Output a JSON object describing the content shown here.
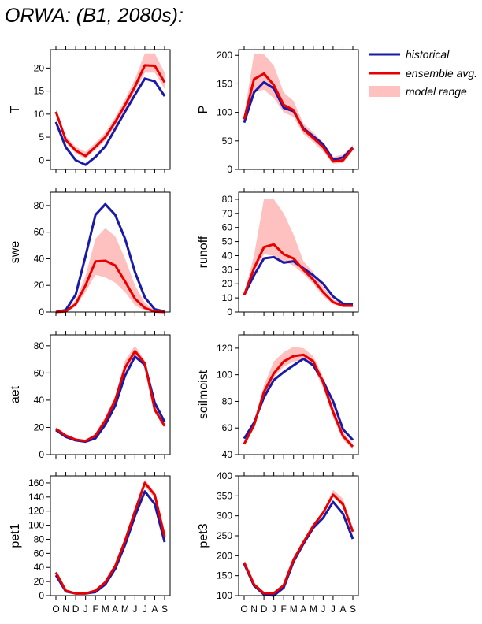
{
  "title": "ORWA:  (B1, 2080s):",
  "months": [
    "O",
    "N",
    "D",
    "J",
    "F",
    "M",
    "A",
    "M",
    "J",
    "J",
    "A",
    "S"
  ],
  "colors": {
    "historical": "#1a1aa8",
    "ensemble": "#e80000",
    "range": "#ffc0c0"
  },
  "legend": [
    {
      "key": "historical",
      "label": "historical"
    },
    {
      "key": "ensemble",
      "label": "ensemble avg."
    },
    {
      "key": "range",
      "label": "model range"
    }
  ],
  "chart_data": [
    {
      "type": "line",
      "ylabel": "T",
      "ylim": [
        -2,
        24
      ],
      "yticks": [
        0,
        5,
        10,
        15,
        20
      ],
      "series": [
        {
          "name": "historical",
          "values": [
            8.3,
            2.8,
            0,
            -1,
            0.7,
            3,
            6.8,
            10.5,
            14.2,
            17.7,
            17.1,
            13.9
          ]
        },
        {
          "name": "ensemble avg.",
          "values": [
            10.5,
            4.4,
            2.1,
            0.9,
            2.9,
            5,
            8.3,
            12,
            16,
            20.6,
            20.5,
            16.9
          ]
        }
      ],
      "range_lower": [
        10,
        3.8,
        1.5,
        0.3,
        2.3,
        4.3,
        7.5,
        11,
        15,
        19,
        19,
        15.5
      ],
      "range_upper": [
        11,
        5.2,
        2.9,
        1.8,
        3.8,
        6,
        9.3,
        13.2,
        17.6,
        23.2,
        23.2,
        19
      ]
    },
    {
      "type": "line",
      "ylabel": "P",
      "ylim": [
        0,
        210
      ],
      "yticks": [
        0,
        50,
        100,
        150,
        200
      ],
      "series": [
        {
          "name": "historical",
          "values": [
            82,
            135,
            153,
            142,
            108,
            102,
            72,
            58,
            44,
            17,
            21,
            38
          ]
        },
        {
          "name": "ensemble avg.",
          "values": [
            88,
            158,
            168,
            148,
            113,
            104,
            70,
            55,
            39,
            14,
            16,
            37
          ]
        }
      ],
      "range_lower": [
        80,
        135,
        140,
        125,
        100,
        92,
        62,
        48,
        31,
        10,
        11,
        33
      ],
      "range_upper": [
        95,
        202,
        202,
        182,
        135,
        120,
        80,
        65,
        47,
        22,
        26,
        43
      ]
    },
    {
      "type": "line",
      "ylabel": "swe",
      "ylim": [
        0,
        90
      ],
      "yticks": [
        0,
        20,
        40,
        60,
        80
      ],
      "series": [
        {
          "name": "historical",
          "values": [
            0,
            1.5,
            13,
            42,
            73,
            81,
            73,
            55,
            30,
            11,
            2,
            0.5
          ]
        },
        {
          "name": "ensemble avg.",
          "values": [
            0,
            0.5,
            6,
            20,
            38,
            38.5,
            35,
            23,
            10,
            3,
            0.3,
            0
          ]
        }
      ],
      "range_lower": [
        0,
        0.2,
        4,
        15,
        28,
        26,
        22,
        15,
        5,
        1,
        0,
        0
      ],
      "range_upper": [
        0.2,
        1,
        9,
        27,
        55,
        63,
        57,
        40,
        20,
        7,
        1.5,
        0.2
      ]
    },
    {
      "type": "line",
      "ylabel": "runoff",
      "ylim": [
        0,
        85
      ],
      "yticks": [
        0,
        10,
        20,
        30,
        40,
        50,
        60,
        70,
        80
      ],
      "series": [
        {
          "name": "historical",
          "values": [
            12,
            26,
            38,
            39,
            35,
            36,
            31,
            26,
            20,
            11,
            6,
            5.5
          ]
        },
        {
          "name": "ensemble avg.",
          "values": [
            12,
            31,
            46,
            48,
            41,
            38,
            30,
            23,
            14,
            7,
            4.5,
            4.5
          ]
        }
      ],
      "range_lower": [
        12,
        28,
        41,
        40,
        36,
        33,
        27,
        20,
        11,
        5.5,
        3.5,
        3.5
      ],
      "range_upper": [
        13,
        40,
        80,
        80,
        70,
        55,
        36,
        28,
        18,
        9,
        6,
        6
      ]
    },
    {
      "type": "line",
      "ylabel": "aet",
      "ylim": [
        0,
        88
      ],
      "yticks": [
        0,
        20,
        40,
        60,
        80
      ],
      "series": [
        {
          "name": "historical",
          "values": [
            18,
            13,
            10.5,
            9.5,
            12,
            22,
            36,
            58,
            72,
            66,
            38,
            24
          ]
        },
        {
          "name": "ensemble avg.",
          "values": [
            19,
            14,
            11,
            10,
            14,
            25,
            40,
            64,
            76,
            67,
            33,
            21
          ]
        }
      ],
      "range_lower": [
        18,
        13.5,
        10.5,
        9.5,
        13,
        23,
        38,
        60,
        72,
        64,
        31,
        20
      ],
      "range_upper": [
        20,
        15,
        11.5,
        10.5,
        15.5,
        28,
        43,
        69,
        80,
        69,
        36,
        23
      ]
    },
    {
      "type": "line",
      "ylabel": "soilmoist",
      "ylim": [
        40,
        130
      ],
      "yticks": [
        40,
        60,
        80,
        100,
        120
      ],
      "series": [
        {
          "name": "historical",
          "values": [
            52,
            64,
            83,
            96,
            102,
            107,
            112,
            107,
            95,
            80,
            59,
            51
          ]
        },
        {
          "name": "ensemble avg.",
          "values": [
            48,
            62,
            87,
            101,
            110,
            114,
            115,
            110,
            94,
            72,
            54,
            46
          ]
        }
      ],
      "range_lower": [
        47,
        60,
        84,
        98,
        106,
        110,
        111,
        106,
        90,
        68,
        51,
        44
      ],
      "range_upper": [
        50,
        65,
        92,
        110,
        117,
        121,
        120,
        114,
        98,
        76,
        57,
        48
      ]
    },
    {
      "type": "line",
      "ylabel": "pet1",
      "ylim": [
        0,
        170
      ],
      "yticks": [
        0,
        20,
        40,
        60,
        80,
        100,
        120,
        140,
        160
      ],
      "series": [
        {
          "name": "historical",
          "values": [
            29,
            6,
            3,
            3,
            5,
            16,
            38,
            72,
            113,
            148,
            130,
            76
          ]
        },
        {
          "name": "ensemble avg.",
          "values": [
            33,
            7,
            3,
            3,
            7,
            19,
            42,
            78,
            120,
            160,
            143,
            84
          ]
        }
      ],
      "range_lower": [
        31,
        6.5,
        3,
        3,
        6,
        17,
        40,
        75,
        116,
        155,
        138,
        80
      ],
      "range_upper": [
        35,
        8,
        3.5,
        3.5,
        8,
        21,
        45,
        82,
        125,
        165,
        147,
        88
      ]
    },
    {
      "type": "line",
      "ylabel": "pet3",
      "ylim": [
        100,
        400
      ],
      "yticks": [
        100,
        150,
        200,
        250,
        300,
        350,
        400
      ],
      "series": [
        {
          "name": "historical",
          "values": [
            180,
            125,
            103,
            100,
            120,
            185,
            230,
            270,
            295,
            335,
            305,
            242
          ]
        },
        {
          "name": "ensemble avg.",
          "values": [
            183,
            128,
            106,
            106,
            126,
            190,
            234,
            275,
            308,
            353,
            329,
            260
          ]
        }
      ],
      "range_lower": [
        181,
        126,
        104,
        104,
        124,
        188,
        232,
        272,
        303,
        348,
        322,
        255
      ],
      "range_upper": [
        186,
        131,
        109,
        109,
        129,
        193,
        237,
        279,
        313,
        365,
        343,
        270
      ]
    }
  ]
}
